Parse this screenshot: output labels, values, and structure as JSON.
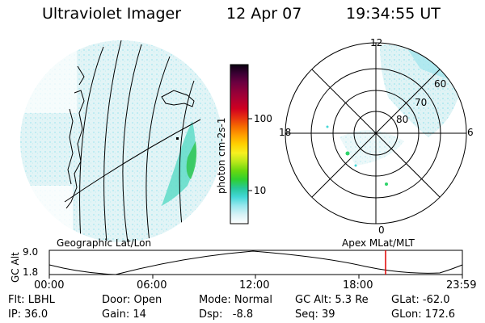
{
  "header": {
    "title": "Ultraviolet Imager",
    "date": "12 Apr 07",
    "time": "19:34:55 UT"
  },
  "colorbar": {
    "label": "photon cm-2s-1",
    "ticks": [
      "100",
      "10"
    ],
    "colors": [
      "#0a0010",
      "#3a0033",
      "#6a0040",
      "#90003a",
      "#b00030",
      "#d00020",
      "#e63010",
      "#f56a00",
      "#ffa000",
      "#ffd000",
      "#f7f020",
      "#b9e81a",
      "#6ad80f",
      "#2fd030",
      "#28c89a",
      "#45d8d8",
      "#9be8ee",
      "#d8f2f6",
      "#ffffff"
    ]
  },
  "left_panel": {
    "label": "Geographic Lat/Lon"
  },
  "right_panel": {
    "label": "Apex MLat/MLT",
    "mlt_labels": {
      "top": "12",
      "left": "18",
      "right": "6",
      "bottom": "0"
    },
    "lat_labels": [
      "60",
      "70",
      "80"
    ]
  },
  "gc_plot": {
    "axis_label": "GC Alt",
    "ymax": "9.0",
    "ymin": "1.8",
    "time_ticks": [
      "00:00",
      "06:00",
      "12:00",
      "18:00",
      "23:59"
    ],
    "marker_color": "#e00000"
  },
  "footer": {
    "flt": "Flt: LBHL",
    "ip": "IP: 36.0",
    "door": "Door: Open",
    "gain": "Gain: 14",
    "mode": "Mode: Normal",
    "dsp": "Dsp:   -8.8",
    "gcalt": "GC Alt: 5.3 Re",
    "seq": "Seq: 39",
    "glat": "GLat: -62.0",
    "glon": "GLon: 172.6"
  }
}
